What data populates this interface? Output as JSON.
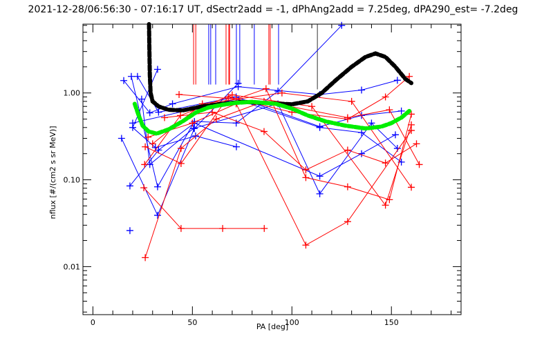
{
  "chart_data": {
    "type": "line",
    "title": "2021-12-28/06:56:30 - 07:16:17 UT, dSectr2add = -1, dPhAng2add = 7.25deg, dPA290_est=  -7.2deg",
    "xlabel": "PA [deg]",
    "ylabel": "nflux [#/(cm2 s sr MeV)]",
    "xlim": [
      -5,
      185
    ],
    "ylim": [
      0.0028,
      6.2
    ],
    "yscale": "log",
    "x_ticks": [
      0,
      50,
      100,
      150
    ],
    "x_tick_labels": [
      "0",
      "50",
      "100",
      "150"
    ],
    "y_ticks": [
      0.01,
      0.1,
      1.0
    ],
    "y_tick_labels": [
      "0.01",
      "0.10",
      "1.00"
    ],
    "colors": {
      "blue": "#0000ff",
      "red": "#ff0000",
      "black": "#000000",
      "green": "#00ee00"
    },
    "series_blue": [
      [
        [
          15.5,
          1.39
        ],
        [
          28.6,
          0.59
        ],
        [
          40,
          0.75
        ],
        [
          73,
          1.18
        ],
        [
          114,
          0.96
        ],
        [
          135,
          1.08
        ],
        [
          153,
          1.4
        ]
      ],
      [
        [
          19.3,
          1.55
        ],
        [
          32.5,
          0.083
        ],
        [
          51,
          0.47
        ],
        [
          72,
          0.45
        ],
        [
          93,
          1.05
        ],
        [
          125,
          6.0
        ]
      ],
      [
        [
          22.4,
          1.55
        ],
        [
          33,
          0.6
        ],
        [
          72,
          0.9
        ],
        [
          114,
          0.41
        ],
        [
          135,
          0.55
        ],
        [
          155,
          0.62
        ]
      ],
      [
        [
          32.5,
          1.87
        ],
        [
          20,
          0.4
        ],
        [
          31.4,
          0.235
        ],
        [
          51.6,
          0.32
        ],
        [
          72.1,
          0.24
        ]
      ],
      [
        [
          14.4,
          0.3
        ],
        [
          32.5,
          0.039
        ],
        [
          51,
          0.39
        ],
        [
          73,
          1.29
        ]
      ],
      [
        [
          18.6,
          0.085
        ],
        [
          33,
          0.22
        ],
        [
          51,
          0.45
        ],
        [
          114,
          0.11
        ],
        [
          135,
          0.2
        ],
        [
          152,
          0.33
        ]
      ],
      [
        [
          24.5,
          0.85
        ],
        [
          28.6,
          0.15
        ],
        [
          50.5,
          0.39
        ],
        [
          93,
          0.75
        ],
        [
          114,
          0.069
        ],
        [
          140,
          0.45
        ],
        [
          153,
          0.23
        ]
      ],
      [
        [
          20,
          0.45
        ],
        [
          72,
          0.85
        ],
        [
          114,
          0.4
        ],
        [
          135,
          0.35
        ],
        [
          155,
          0.16
        ]
      ],
      [
        [
          18.6,
          0.026
        ]
      ]
    ],
    "series_red": [
      [
        [
          43.3,
          0.96
        ],
        [
          72,
          0.85
        ],
        [
          87,
          1.12
        ],
        [
          107,
          0.106
        ],
        [
          128,
          0.083
        ],
        [
          149,
          0.059
        ],
        [
          160,
          0.57
        ]
      ],
      [
        [
          36,
          0.52
        ],
        [
          60,
          0.6
        ],
        [
          86,
          0.36
        ],
        [
          107,
          0.13
        ],
        [
          128,
          0.22
        ],
        [
          147,
          0.156
        ],
        [
          162.6,
          0.26
        ]
      ],
      [
        [
          27.7,
          0.31
        ],
        [
          50,
          0.45
        ],
        [
          72,
          0.75
        ],
        [
          107,
          0.0177
        ],
        [
          128,
          0.033
        ],
        [
          160,
          0.37
        ]
      ],
      [
        [
          26.3,
          0.24
        ],
        [
          44.3,
          0.154
        ],
        [
          68,
          0.9
        ],
        [
          100,
          0.6
        ],
        [
          128,
          0.5
        ],
        [
          147,
          0.9
        ],
        [
          159,
          1.55
        ]
      ],
      [
        [
          26,
          0.15
        ],
        [
          44,
          0.55
        ],
        [
          70,
          0.95
        ],
        [
          110,
          0.7
        ],
        [
          147,
          0.051
        ],
        [
          160,
          0.43
        ]
      ],
      [
        [
          25.6,
          0.081
        ],
        [
          44.3,
          0.0275
        ],
        [
          65.2,
          0.0275
        ],
        [
          86.1,
          0.0275
        ]
      ],
      [
        [
          26.3,
          0.0127
        ],
        [
          44.3,
          0.23
        ],
        [
          62,
          0.5
        ],
        [
          86,
          0.8
        ],
        [
          128,
          0.52
        ],
        [
          149,
          0.64
        ],
        [
          164,
          0.15
        ]
      ],
      [
        [
          30,
          0.26
        ],
        [
          55,
          0.75
        ],
        [
          95,
          1.0
        ],
        [
          130,
          0.8
        ],
        [
          160,
          0.082
        ]
      ]
    ],
    "error_bars": [
      {
        "x": 50.6,
        "color": "red",
        "lo": 1.25
      },
      {
        "x": 51.7,
        "color": "red",
        "lo": 1.25
      },
      {
        "x": 58.2,
        "color": "blue",
        "lo": 1.25
      },
      {
        "x": 59.2,
        "color": "blue",
        "lo": 1.25
      },
      {
        "x": 61.7,
        "color": "blue",
        "lo": 1.25
      },
      {
        "x": 66.9,
        "color": "red",
        "lo": 1.25
      },
      {
        "x": 68.3,
        "color": "red",
        "lo": 1.25
      },
      {
        "x": 68.7,
        "color": "red",
        "lo": 1.25
      },
      {
        "x": 72.1,
        "color": "blue",
        "lo": 1.25
      },
      {
        "x": 73.8,
        "color": "blue",
        "lo": 1.25
      },
      {
        "x": 81.1,
        "color": "blue",
        "lo": 1.25
      },
      {
        "x": 88.4,
        "color": "red",
        "lo": 1.25
      },
      {
        "x": 89.1,
        "color": "red",
        "lo": 1.25
      },
      {
        "x": 93.3,
        "color": "blue",
        "lo": 1.25
      },
      {
        "x": 112.8,
        "color": "black",
        "lo": 1.1
      }
    ],
    "fit_black": [
      [
        28.2,
        6.2
      ],
      [
        28.4,
        3
      ],
      [
        28.6,
        1.6
      ],
      [
        29,
        1.0
      ],
      [
        30,
        0.8
      ],
      [
        33,
        0.7
      ],
      [
        38,
        0.64
      ],
      [
        45,
        0.63
      ],
      [
        55,
        0.7
      ],
      [
        65,
        0.75
      ],
      [
        75,
        0.79
      ],
      [
        90,
        0.76
      ],
      [
        100,
        0.74
      ],
      [
        108,
        0.8
      ],
      [
        115,
        1.0
      ],
      [
        122,
        1.4
      ],
      [
        130,
        2.0
      ],
      [
        137,
        2.6
      ],
      [
        142,
        2.85
      ],
      [
        147,
        2.6
      ],
      [
        152,
        2.0
      ],
      [
        157,
        1.45
      ],
      [
        160,
        1.3
      ]
    ],
    "fit_green": [
      [
        21,
        0.75
      ],
      [
        23,
        0.55
      ],
      [
        25,
        0.42
      ],
      [
        28,
        0.36
      ],
      [
        32,
        0.34
      ],
      [
        38,
        0.38
      ],
      [
        45,
        0.47
      ],
      [
        52,
        0.6
      ],
      [
        58,
        0.68
      ],
      [
        65,
        0.73
      ],
      [
        72,
        0.77
      ],
      [
        80,
        0.79
      ],
      [
        92,
        0.75
      ],
      [
        100,
        0.66
      ],
      [
        108,
        0.55
      ],
      [
        117,
        0.47
      ],
      [
        127,
        0.42
      ],
      [
        137,
        0.39
      ],
      [
        145,
        0.41
      ],
      [
        150,
        0.45
      ],
      [
        155,
        0.52
      ],
      [
        159,
        0.62
      ]
    ]
  }
}
